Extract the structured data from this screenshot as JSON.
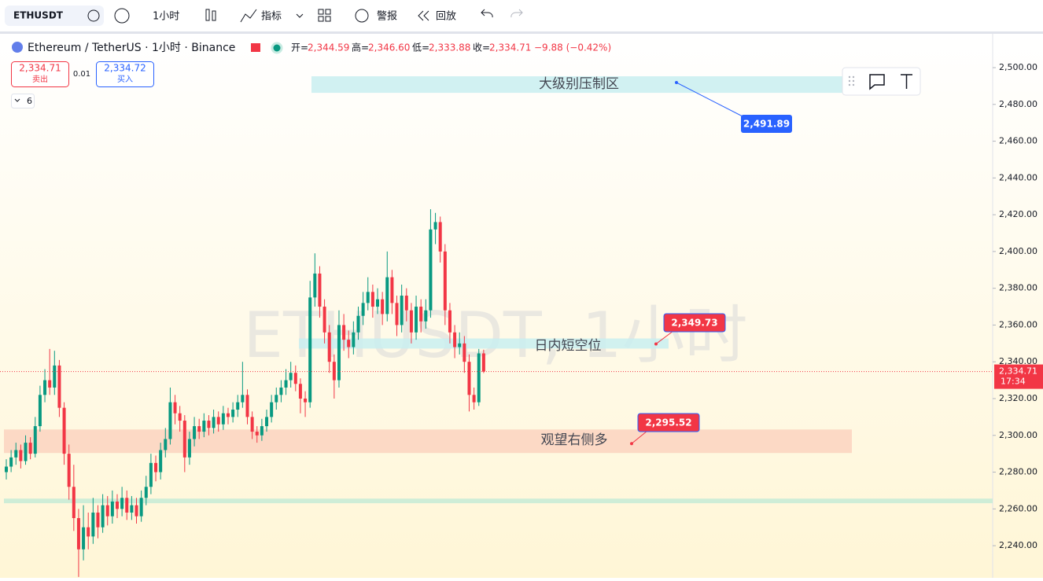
{
  "toolbar": {
    "symbol": "ETHUSDT",
    "interval": "1小时",
    "indicators": "指标",
    "alert": "警报",
    "replay": "回放"
  },
  "legend": {
    "title": "Ethereum / TetherUS · 1小时 · Binance",
    "open_label": "开=",
    "open": "2,344.59",
    "high_label": "高=",
    "high": "2,346.60",
    "low_label": "低=",
    "low": "2,333.88",
    "close_label": "收=",
    "close": "2,334.71",
    "change": "−9.88 (−0.42%)"
  },
  "trade": {
    "sell_price": "2,334.71",
    "sell": "卖出",
    "spread": "0.01",
    "buy_price": "2,334.72",
    "buy": "买入",
    "indicator_count": "6"
  },
  "chart_data": {
    "type": "candlestick",
    "watermark": "ETHUSDT, 1小时",
    "up_color": "#089981",
    "down_color": "#f23645",
    "ylim": [
      2222.5,
      2518.4
    ],
    "yticks": [
      {
        "value": 2240,
        "label": "2,240.00"
      },
      {
        "value": 2260,
        "label": "2,260.00"
      },
      {
        "value": 2280,
        "label": "2,280.00"
      },
      {
        "value": 2300,
        "label": "2,300.00"
      },
      {
        "value": 2320,
        "label": "2,320.00"
      },
      {
        "value": 2340,
        "label": "2,340.00"
      },
      {
        "value": 2360,
        "label": "2,360.00"
      },
      {
        "value": 2380,
        "label": "2,380.00"
      },
      {
        "value": 2400,
        "label": "2,400.00"
      },
      {
        "value": 2420,
        "label": "2,420.00"
      },
      {
        "value": 2440,
        "label": "2,440.00"
      },
      {
        "value": 2460,
        "label": "2,460.00"
      },
      {
        "value": 2480,
        "label": "2,480.00"
      },
      {
        "value": 2500,
        "label": "2,500.00"
      }
    ],
    "last_price": {
      "value": 2334.71,
      "label": "2,334.71"
    },
    "countdown": "17:34",
    "zones": [
      {
        "label": "大级别压制区",
        "range": [
          2486.3,
          2495.3
        ],
        "color": "#c9eff0"
      },
      {
        "label": "日内短空位",
        "range": [
          2347.2,
          2352.7
        ],
        "color": "#c9eff0"
      },
      {
        "label": "观望右侧多",
        "range": [
          2290.4,
          2303.2
        ],
        "color": "#fbd3c0"
      },
      {
        "range": [
          2263.1,
          2265.6
        ],
        "color": "#c6ebd6"
      }
    ],
    "callouts": [
      {
        "value": 2491.89,
        "label": "2,491.89",
        "color": "#2962ff"
      },
      {
        "value": 2349.73,
        "label": "2,349.73",
        "color": "#f23645"
      },
      {
        "value": 2295.52,
        "label": "2,295.52",
        "color": "#f23645"
      }
    ],
    "ohlc": [
      [
        2280,
        2287,
        2276,
        2283
      ],
      [
        2283,
        2292,
        2280,
        2288
      ],
      [
        2288,
        2296,
        2284,
        2292
      ],
      [
        2292,
        2295,
        2282,
        2286
      ],
      [
        2286,
        2300,
        2284,
        2296
      ],
      [
        2296,
        2299,
        2287,
        2290
      ],
      [
        2290,
        2310,
        2288,
        2305
      ],
      [
        2305,
        2327,
        2302,
        2322
      ],
      [
        2322,
        2336,
        2318,
        2330
      ],
      [
        2330,
        2347,
        2322,
        2326
      ],
      [
        2326,
        2346,
        2322,
        2338
      ],
      [
        2338,
        2341,
        2310,
        2315
      ],
      [
        2315,
        2318,
        2284,
        2290
      ],
      [
        2290,
        2295,
        2265,
        2272
      ],
      [
        2272,
        2284,
        2248,
        2255
      ],
      [
        2255,
        2260,
        2223,
        2238
      ],
      [
        2238,
        2262,
        2232,
        2250
      ],
      [
        2250,
        2258,
        2238,
        2245
      ],
      [
        2245,
        2266,
        2241,
        2258
      ],
      [
        2258,
        2262,
        2244,
        2250
      ],
      [
        2250,
        2268,
        2247,
        2262
      ],
      [
        2262,
        2267,
        2251,
        2256
      ],
      [
        2256,
        2270,
        2252,
        2264
      ],
      [
        2264,
        2268,
        2255,
        2260
      ],
      [
        2260,
        2272,
        2256,
        2266
      ],
      [
        2266,
        2270,
        2254,
        2258
      ],
      [
        2258,
        2267,
        2254,
        2262
      ],
      [
        2262,
        2266,
        2252,
        2256
      ],
      [
        2256,
        2270,
        2253,
        2266
      ],
      [
        2266,
        2278,
        2262,
        2272
      ],
      [
        2272,
        2290,
        2268,
        2285
      ],
      [
        2285,
        2289,
        2275,
        2280
      ],
      [
        2280,
        2296,
        2276,
        2292
      ],
      [
        2292,
        2304,
        2288,
        2298
      ],
      [
        2298,
        2326,
        2295,
        2318
      ],
      [
        2318,
        2322,
        2306,
        2312
      ],
      [
        2312,
        2316,
        2302,
        2308
      ],
      [
        2308,
        2311,
        2280,
        2288
      ],
      [
        2288,
        2302,
        2284,
        2298
      ],
      [
        2298,
        2310,
        2294,
        2305
      ],
      [
        2305,
        2309,
        2298,
        2302
      ],
      [
        2302,
        2312,
        2299,
        2308
      ],
      [
        2308,
        2311,
        2300,
        2304
      ],
      [
        2304,
        2314,
        2301,
        2310
      ],
      [
        2310,
        2313,
        2302,
        2306
      ],
      [
        2306,
        2316,
        2303,
        2312
      ],
      [
        2312,
        2315,
        2306,
        2310
      ],
      [
        2310,
        2318,
        2307,
        2314
      ],
      [
        2314,
        2322,
        2310,
        2318
      ],
      [
        2318,
        2340,
        2315,
        2322
      ],
      [
        2322,
        2325,
        2306,
        2310
      ],
      [
        2310,
        2313,
        2298,
        2302
      ],
      [
        2302,
        2305,
        2296,
        2300
      ],
      [
        2300,
        2309,
        2297,
        2305
      ],
      [
        2305,
        2314,
        2302,
        2310
      ],
      [
        2310,
        2322,
        2307,
        2318
      ],
      [
        2318,
        2326,
        2314,
        2322
      ],
      [
        2322,
        2330,
        2318,
        2326
      ],
      [
        2326,
        2336,
        2322,
        2330
      ],
      [
        2330,
        2340,
        2326,
        2334
      ],
      [
        2334,
        2338,
        2324,
        2328
      ],
      [
        2328,
        2331,
        2312,
        2320
      ],
      [
        2320,
        2324,
        2310,
        2318
      ],
      [
        2318,
        2384,
        2315,
        2375
      ],
      [
        2375,
        2399,
        2370,
        2388
      ],
      [
        2388,
        2392,
        2364,
        2370
      ],
      [
        2370,
        2374,
        2350,
        2356
      ],
      [
        2356,
        2360,
        2334,
        2340
      ],
      [
        2340,
        2344,
        2320,
        2330
      ],
      [
        2330,
        2368,
        2326,
        2360
      ],
      [
        2360,
        2366,
        2346,
        2352
      ],
      [
        2352,
        2357,
        2342,
        2348
      ],
      [
        2348,
        2362,
        2344,
        2356
      ],
      [
        2356,
        2370,
        2352,
        2365
      ],
      [
        2365,
        2378,
        2360,
        2372
      ],
      [
        2372,
        2386,
        2368,
        2378
      ],
      [
        2378,
        2382,
        2364,
        2370
      ],
      [
        2370,
        2380,
        2366,
        2374
      ],
      [
        2374,
        2378,
        2360,
        2366
      ],
      [
        2366,
        2400,
        2362,
        2386
      ],
      [
        2386,
        2390,
        2366,
        2372
      ],
      [
        2372,
        2376,
        2354,
        2360
      ],
      [
        2360,
        2382,
        2356,
        2376
      ],
      [
        2376,
        2380,
        2362,
        2368
      ],
      [
        2368,
        2372,
        2350,
        2356
      ],
      [
        2356,
        2376,
        2352,
        2370
      ],
      [
        2370,
        2374,
        2356,
        2362
      ],
      [
        2362,
        2374,
        2358,
        2368
      ],
      [
        2368,
        2423,
        2364,
        2412
      ],
      [
        2412,
        2421,
        2404,
        2416
      ],
      [
        2416,
        2419,
        2394,
        2400
      ],
      [
        2400,
        2404,
        2360,
        2368
      ],
      [
        2368,
        2372,
        2350,
        2356
      ],
      [
        2356,
        2360,
        2342,
        2348
      ],
      [
        2348,
        2356,
        2344,
        2350
      ],
      [
        2350,
        2354,
        2334,
        2340
      ],
      [
        2340,
        2344,
        2313,
        2322
      ],
      [
        2322,
        2326,
        2314,
        2318
      ],
      [
        2318,
        2347,
        2316,
        2344.59
      ],
      [
        2344.59,
        2346.6,
        2333.88,
        2334.71
      ]
    ]
  }
}
